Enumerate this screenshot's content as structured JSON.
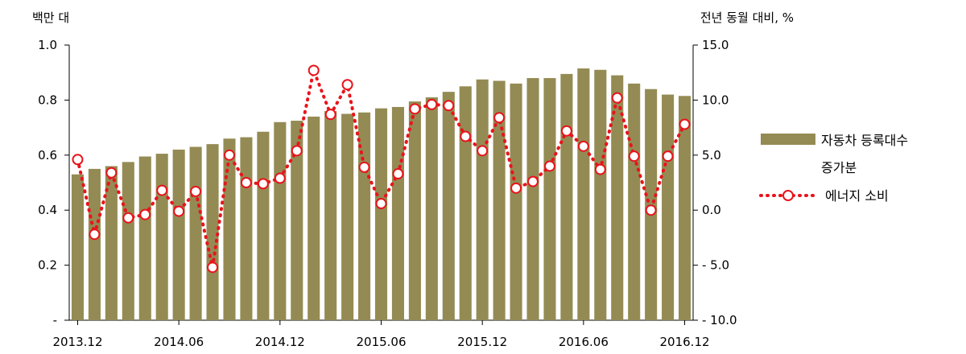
{
  "chart_data": {
    "type": "bar+line",
    "left_axis_unit": "백만 대",
    "right_axis_unit": "전년 동월 대비, %",
    "left_ticks": [
      "-",
      "0.2",
      "0.4",
      "0.6",
      "0.8",
      "1.0"
    ],
    "left_ylim": [
      0,
      1.0
    ],
    "right_ticks": [
      "- 10.0",
      "- 5.0",
      "0.0",
      "5.0",
      "10.0",
      "15.0"
    ],
    "right_ylim": [
      -10,
      15
    ],
    "x_tick_labels": [
      "2013.12",
      "2014.06",
      "2014.12",
      "2015.06",
      "2015.12",
      "2016.06",
      "2016.12"
    ],
    "categories": [
      "2013.12",
      "2014.01",
      "2014.02",
      "2014.03",
      "2014.04",
      "2014.05",
      "2014.06",
      "2014.07",
      "2014.08",
      "2014.09",
      "2014.10",
      "2014.11",
      "2014.12",
      "2015.01",
      "2015.02",
      "2015.03",
      "2015.04",
      "2015.05",
      "2015.06",
      "2015.07",
      "2015.08",
      "2015.09",
      "2015.10",
      "2015.11",
      "2015.12",
      "2016.01",
      "2016.02",
      "2016.03",
      "2016.04",
      "2016.05",
      "2016.06",
      "2016.07",
      "2016.08",
      "2016.09",
      "2016.10",
      "2016.11",
      "2016.12"
    ],
    "series": [
      {
        "name": "자동차 등록대수 증가분",
        "kind": "bar",
        "axis": "left",
        "color": "#948b54",
        "values": [
          0.53,
          0.55,
          0.56,
          0.575,
          0.595,
          0.605,
          0.62,
          0.63,
          0.64,
          0.66,
          0.665,
          0.685,
          0.72,
          0.725,
          0.74,
          0.76,
          0.75,
          0.755,
          0.77,
          0.775,
          0.795,
          0.81,
          0.83,
          0.85,
          0.875,
          0.87,
          0.86,
          0.88,
          0.88,
          0.895,
          0.915,
          0.91,
          0.89,
          0.86,
          0.84,
          0.82,
          0.815
        ]
      },
      {
        "name": "에너지 소비",
        "kind": "line",
        "axis": "right",
        "color": "#e8141b",
        "values": [
          4.6,
          -2.2,
          3.4,
          -0.7,
          -0.4,
          1.8,
          -0.1,
          1.7,
          -5.2,
          5.0,
          2.5,
          2.4,
          2.9,
          5.4,
          12.7,
          8.7,
          11.4,
          3.9,
          0.6,
          3.3,
          9.2,
          9.6,
          9.5,
          6.7,
          5.4,
          8.4,
          2.0,
          2.6,
          4.0,
          7.2,
          5.8,
          3.7,
          10.2,
          4.9,
          0.0,
          4.9,
          7.8
        ]
      }
    ],
    "legend": {
      "placement": "right",
      "bar_label_line1": "자동차 등록대수",
      "bar_label_line2": "증가분",
      "line_label": "에너지 소비"
    },
    "grid": false
  }
}
